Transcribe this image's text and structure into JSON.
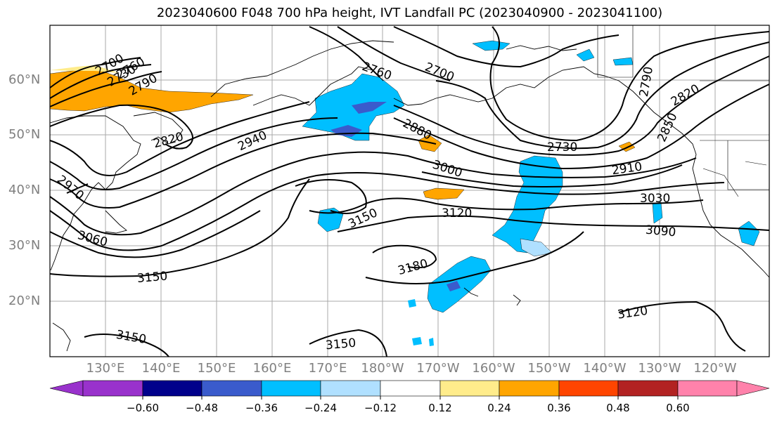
{
  "title": "2023040600 F048 700 hPa height, IVT Landfall PC (2023040900 - 2023041100)",
  "lat_labels": [
    "60°N",
    "50°N",
    "40°N",
    "30°N",
    "20°N"
  ],
  "lon_labels": [
    "130°E",
    "140°E",
    "150°E",
    "160°E",
    "170°E",
    "180°W",
    "170°W",
    "160°W",
    "150°W",
    "140°W",
    "130°W",
    "120°W"
  ],
  "contour_labels": [
    "2700",
    "2730",
    "2760",
    "2790",
    "2760",
    "2700",
    "2820",
    "2940",
    "2970",
    "3060",
    "3150",
    "3150",
    "2760",
    "2700",
    "2880",
    "3000",
    "3120",
    "3150",
    "3180",
    "3150",
    "2730",
    "2910",
    "3030",
    "3090",
    "3120",
    "2820",
    "2850",
    "2790"
  ],
  "colorbar": {
    "ticks": [
      "−0.60",
      "−0.48",
      "−0.36",
      "−0.24",
      "−0.12",
      "0.12",
      "0.24",
      "0.36",
      "0.48",
      "0.60"
    ],
    "colors": [
      "#9932cc",
      "#00008b",
      "#3a5bcc",
      "#00bfff",
      "#b0e0ff",
      "#ffffff",
      "#ffec8b",
      "#ffa500",
      "#ff4500",
      "#b22222",
      "#ff82ab"
    ]
  },
  "fill_colors": {
    "orange": "#ffa500",
    "light_yellow": "#ffec8b",
    "sky_blue": "#00bfff",
    "light_blue": "#b0e0ff",
    "royal_blue": "#3a5bcc"
  }
}
